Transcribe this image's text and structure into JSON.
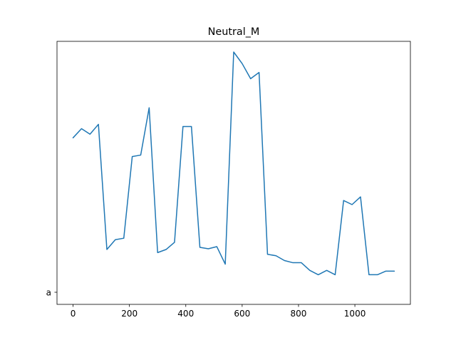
{
  "chart_data": {
    "type": "line",
    "title": "Neutral_M",
    "xlabel": "",
    "ylabel": "",
    "x_ticks": [
      0,
      200,
      400,
      600,
      800,
      1000
    ],
    "x_tick_labels": [
      "0",
      "200",
      "400",
      "600",
      "800",
      "1000"
    ],
    "xlim": [
      -57,
      1197
    ],
    "y_ticks": [
      "a"
    ],
    "grid": false,
    "legend": "none",
    "series": [
      {
        "color": "#1f77b4",
        "x": [
          0,
          30,
          60,
          90,
          120,
          150,
          180,
          210,
          240,
          270,
          300,
          330,
          360,
          390,
          420,
          450,
          480,
          510,
          540,
          570,
          600,
          630,
          660,
          690,
          720,
          750,
          780,
          810,
          840,
          870,
          900,
          930,
          960,
          990,
          1020,
          1050,
          1080,
          1110,
          1140
        ],
        "y": [
          0.643,
          0.681,
          0.658,
          0.699,
          0.178,
          0.219,
          0.225,
          0.565,
          0.571,
          0.768,
          0.165,
          0.178,
          0.208,
          0.69,
          0.69,
          0.187,
          0.181,
          0.19,
          0.117,
          1.0,
          0.952,
          0.889,
          0.915,
          0.158,
          0.152,
          0.132,
          0.123,
          0.123,
          0.091,
          0.073,
          0.091,
          0.073,
          0.382,
          0.365,
          0.397,
          0.073,
          0.073,
          0.088,
          0.088
        ]
      }
    ]
  }
}
